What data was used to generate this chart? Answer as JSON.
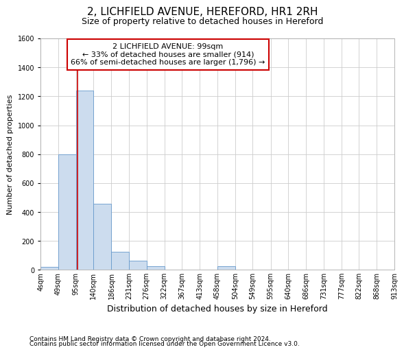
{
  "title_line1": "2, LICHFIELD AVENUE, HEREFORD, HR1 2RH",
  "title_line2": "Size of property relative to detached houses in Hereford",
  "xlabel": "Distribution of detached houses by size in Hereford",
  "ylabel": "Number of detached properties",
  "footer_line1": "Contains HM Land Registry data © Crown copyright and database right 2024.",
  "footer_line2": "Contains public sector information licensed under the Open Government Licence v3.0.",
  "bin_labels": [
    "4sqm",
    "49sqm",
    "95sqm",
    "140sqm",
    "186sqm",
    "231sqm",
    "276sqm",
    "322sqm",
    "367sqm",
    "413sqm",
    "458sqm",
    "504sqm",
    "549sqm",
    "595sqm",
    "640sqm",
    "686sqm",
    "731sqm",
    "777sqm",
    "822sqm",
    "868sqm",
    "913sqm"
  ],
  "bar_values": [
    22,
    800,
    1240,
    455,
    125,
    62,
    25,
    0,
    0,
    0,
    25,
    0,
    0,
    0,
    0,
    0,
    0,
    0,
    0,
    0
  ],
  "bin_edges": [
    4,
    49,
    95,
    140,
    186,
    231,
    276,
    322,
    367,
    413,
    458,
    504,
    549,
    595,
    640,
    686,
    731,
    777,
    822,
    868,
    913
  ],
  "property_size": 99,
  "property_label": "2 LICHFIELD AVENUE: 99sqm",
  "annotation_line1": "← 33% of detached houses are smaller (914)",
  "annotation_line2": "66% of semi-detached houses are larger (1,796) →",
  "bar_color": "#ccdcee",
  "bar_edge_color": "#6699cc",
  "vline_color": "#cc0000",
  "annotation_box_edge_color": "#cc0000",
  "ylim": [
    0,
    1600
  ],
  "yticks": [
    0,
    200,
    400,
    600,
    800,
    1000,
    1200,
    1400,
    1600
  ],
  "grid_color": "#cccccc",
  "bg_color": "#ffffff",
  "title1_fontsize": 11,
  "title2_fontsize": 9,
  "ylabel_fontsize": 8,
  "xlabel_fontsize": 9,
  "tick_fontsize": 7,
  "annot_fontsize": 8,
  "footer_fontsize": 6.5
}
